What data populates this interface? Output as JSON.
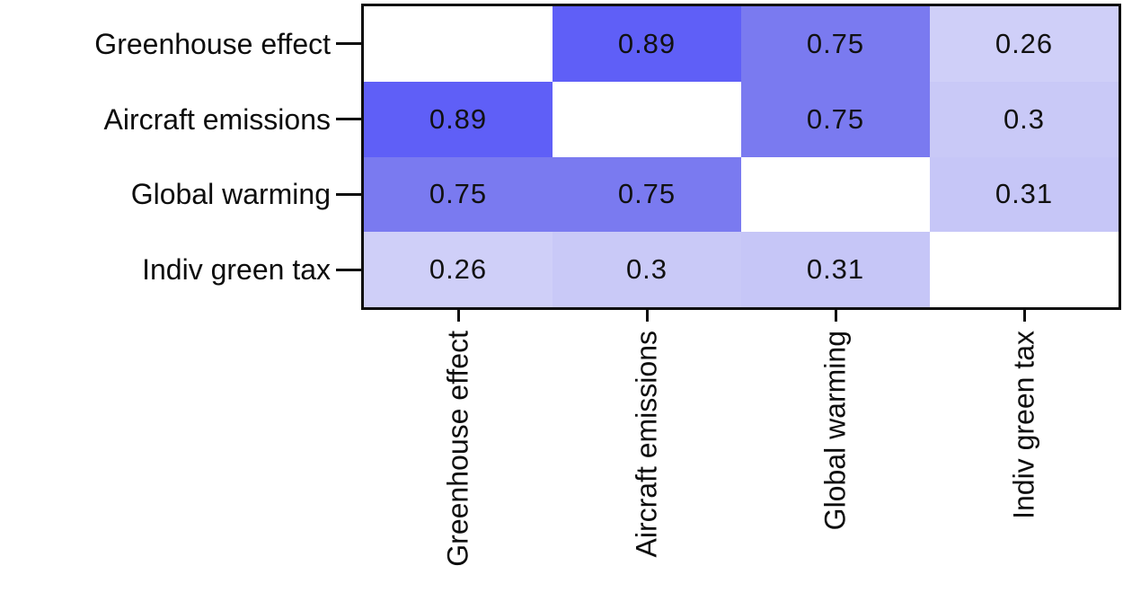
{
  "chart_data": {
    "type": "heatmap",
    "title": "",
    "xlabel": "",
    "ylabel": "",
    "categories": [
      "Greenhouse effect",
      "Aircraft emissions",
      "Global warming",
      "Indiv green tax"
    ],
    "row_labels": [
      "Greenhouse effect",
      "Aircraft emissions",
      "Global warming",
      "Indiv green tax"
    ],
    "col_labels": [
      "Greenhouse effect",
      "Aircraft emissions",
      "Global warming",
      "Indiv green tax"
    ],
    "matrix": [
      [
        null,
        0.89,
        0.75,
        0.26
      ],
      [
        0.89,
        null,
        0.75,
        0.3
      ],
      [
        0.75,
        0.75,
        null,
        0.31
      ],
      [
        0.26,
        0.3,
        0.31,
        null
      ]
    ],
    "cell_labels": [
      [
        "",
        "0.89",
        "0.75",
        "0.26"
      ],
      [
        "0.89",
        "",
        "0.75",
        "0.3"
      ],
      [
        "0.75",
        "0.75",
        "",
        "0.31"
      ],
      [
        "0.26",
        "0.3",
        "0.31",
        ""
      ]
    ],
    "cell_colors": [
      [
        "#ffffff",
        "#5f5ff7",
        "#7a7af0",
        "#cfcff8"
      ],
      [
        "#5f5ff7",
        "#ffffff",
        "#7a7af0",
        "#c9c9f7"
      ],
      [
        "#7a7af0",
        "#7a7af0",
        "#ffffff",
        "#c6c6f7"
      ],
      [
        "#cfcff8",
        "#c9c9f7",
        "#c6c6f7",
        "#ffffff"
      ]
    ],
    "value_range": [
      0,
      1
    ],
    "colormap": "white-to-blue",
    "diagonal_color": "#ffffff",
    "border_color": "#0d0d0d",
    "grid": false,
    "legend": false,
    "column_labels_rotated_degrees": 90
  }
}
